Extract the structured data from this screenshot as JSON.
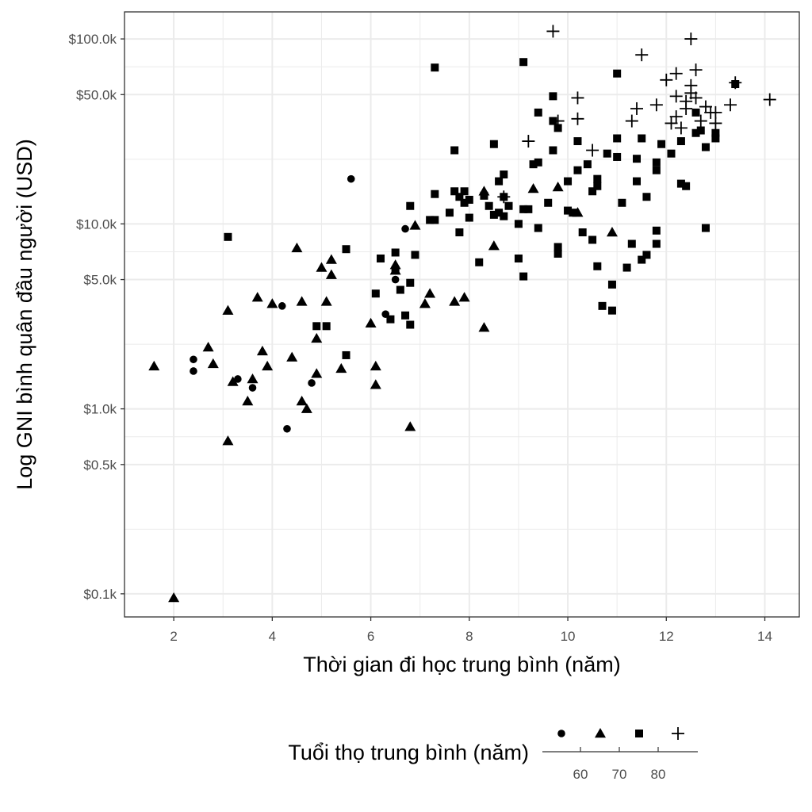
{
  "chart_data": {
    "type": "scatter",
    "x_label": "Thời gian đi học trung bình (năm)",
    "y_label": "Log GNI bình quân đầu người (USD)",
    "x_range": [
      1.0,
      14.7
    ],
    "y_range": [
      0.075,
      140
    ],
    "y_scale": "log10",
    "x_ticks": [
      2,
      4,
      6,
      8,
      10,
      12,
      14
    ],
    "x_tick_labels": [
      "2",
      "4",
      "6",
      "8",
      "10",
      "12",
      "14"
    ],
    "y_ticks": [
      0.1,
      0.5,
      1,
      5,
      10,
      50,
      100
    ],
    "y_tick_labels": [
      "$0.1k",
      "$0.5k",
      "$1.0k",
      "$5.0k",
      "$10.0k",
      "$50.0k",
      "$100.0k"
    ],
    "grid": true,
    "legend": {
      "title": "Tuổi thọ trung bình (năm)",
      "position": "bottom",
      "shapes": [
        "circle",
        "triangle",
        "square",
        "cross"
      ],
      "scale_ticks": [
        "60",
        "70",
        "80"
      ]
    },
    "colors": {
      "grid": "#ebebeb",
      "panel_border": "#333333",
      "points": "#000000",
      "text": "#4d4d4d"
    },
    "series": [
      {
        "shape": "circle",
        "points": [
          [
            2.4,
            1.85
          ],
          [
            2.4,
            1.6
          ],
          [
            3.3,
            1.45
          ],
          [
            3.6,
            1.3
          ],
          [
            4.2,
            3.6
          ],
          [
            4.3,
            0.78
          ],
          [
            4.8,
            1.38
          ],
          [
            5.6,
            17.5
          ],
          [
            6.3,
            3.25
          ],
          [
            6.5,
            5.0
          ],
          [
            6.7,
            9.4
          ]
        ]
      },
      {
        "shape": "triangle",
        "points": [
          [
            1.6,
            1.7
          ],
          [
            2.0,
            0.095
          ],
          [
            2.7,
            2.15
          ],
          [
            2.8,
            1.75
          ],
          [
            3.1,
            0.67
          ],
          [
            3.1,
            3.4
          ],
          [
            3.2,
            1.4
          ],
          [
            3.5,
            1.1
          ],
          [
            3.6,
            1.45
          ],
          [
            3.7,
            4.0
          ],
          [
            3.8,
            2.05
          ],
          [
            3.9,
            1.7
          ],
          [
            4.0,
            3.7
          ],
          [
            4.4,
            1.9
          ],
          [
            4.5,
            7.4
          ],
          [
            4.6,
            3.8
          ],
          [
            4.6,
            1.1
          ],
          [
            4.7,
            1.0
          ],
          [
            4.9,
            2.4
          ],
          [
            4.9,
            1.55
          ],
          [
            5.0,
            5.8
          ],
          [
            5.1,
            3.8
          ],
          [
            5.2,
            6.4
          ],
          [
            5.2,
            5.3
          ],
          [
            5.4,
            1.65
          ],
          [
            6.0,
            2.9
          ],
          [
            6.1,
            1.7
          ],
          [
            6.1,
            1.35
          ],
          [
            6.5,
            6.0
          ],
          [
            6.5,
            5.6
          ],
          [
            6.8,
            0.8
          ],
          [
            6.9,
            9.8
          ],
          [
            7.1,
            3.7
          ],
          [
            7.2,
            4.2
          ],
          [
            7.7,
            3.8
          ],
          [
            7.9,
            4.0
          ],
          [
            8.3,
            2.75
          ],
          [
            8.3,
            15.0
          ],
          [
            8.5,
            7.6
          ],
          [
            9.3,
            15.5
          ],
          [
            9.8,
            15.8
          ],
          [
            10.2,
            11.5
          ],
          [
            10.9,
            9.0
          ]
        ]
      },
      {
        "shape": "square",
        "points": [
          [
            3.1,
            8.5
          ],
          [
            4.9,
            2.8
          ],
          [
            5.1,
            2.8
          ],
          [
            5.5,
            7.3
          ],
          [
            5.5,
            1.95
          ],
          [
            6.1,
            4.2
          ],
          [
            6.2,
            6.5
          ],
          [
            6.4,
            3.05
          ],
          [
            6.5,
            7.0
          ],
          [
            6.5,
            5.6
          ],
          [
            6.6,
            4.4
          ],
          [
            6.7,
            3.2
          ],
          [
            6.8,
            12.5
          ],
          [
            6.8,
            4.8
          ],
          [
            6.8,
            2.85
          ],
          [
            6.9,
            6.8
          ],
          [
            7.2,
            10.5
          ],
          [
            7.3,
            14.5
          ],
          [
            7.3,
            10.5
          ],
          [
            7.3,
            70
          ],
          [
            7.6,
            11.5
          ],
          [
            7.7,
            15.0
          ],
          [
            7.7,
            25
          ],
          [
            7.8,
            9.0
          ],
          [
            7.8,
            14.0
          ],
          [
            7.9,
            15.0
          ],
          [
            7.9,
            13.0
          ],
          [
            8.0,
            13.5
          ],
          [
            8.0,
            10.8
          ],
          [
            8.2,
            6.2
          ],
          [
            8.3,
            14.2
          ],
          [
            8.4,
            12.5
          ],
          [
            8.5,
            11.2
          ],
          [
            8.5,
            27
          ],
          [
            8.6,
            11.5
          ],
          [
            8.6,
            17.0
          ],
          [
            8.7,
            14.0
          ],
          [
            8.7,
            11.0
          ],
          [
            8.7,
            18.5
          ],
          [
            8.8,
            12.5
          ],
          [
            9.0,
            10.0
          ],
          [
            9.0,
            6.5
          ],
          [
            9.1,
            5.2
          ],
          [
            9.1,
            12.0
          ],
          [
            9.1,
            75
          ],
          [
            9.2,
            12.0
          ],
          [
            9.3,
            21
          ],
          [
            9.4,
            9.5
          ],
          [
            9.4,
            21.5
          ],
          [
            9.4,
            40
          ],
          [
            9.6,
            13.0
          ],
          [
            9.7,
            25
          ],
          [
            9.7,
            36
          ],
          [
            9.7,
            49
          ],
          [
            9.8,
            7.5
          ],
          [
            9.8,
            6.9
          ],
          [
            9.8,
            33
          ],
          [
            10.0,
            17.0
          ],
          [
            10.0,
            11.8
          ],
          [
            10.1,
            11.5
          ],
          [
            10.2,
            19.5
          ],
          [
            10.2,
            28
          ],
          [
            10.3,
            9.0
          ],
          [
            10.4,
            21
          ],
          [
            10.5,
            8.2
          ],
          [
            10.5,
            15.0
          ],
          [
            10.6,
            5.9
          ],
          [
            10.6,
            16.0
          ],
          [
            10.6,
            17.5
          ],
          [
            10.7,
            3.6
          ],
          [
            10.8,
            24
          ],
          [
            10.9,
            3.4
          ],
          [
            10.9,
            4.7
          ],
          [
            11.0,
            29
          ],
          [
            11.0,
            23
          ],
          [
            11.0,
            65
          ],
          [
            11.1,
            13.0
          ],
          [
            11.2,
            5.8
          ],
          [
            11.3,
            7.8
          ],
          [
            11.4,
            17.0
          ],
          [
            11.4,
            22.5
          ],
          [
            11.5,
            29
          ],
          [
            11.5,
            6.4
          ],
          [
            11.6,
            14.0
          ],
          [
            11.6,
            6.8
          ],
          [
            11.8,
            7.8
          ],
          [
            11.8,
            9.2
          ],
          [
            11.8,
            19.5
          ],
          [
            11.8,
            21.5
          ],
          [
            11.9,
            27
          ],
          [
            12.1,
            24
          ],
          [
            12.3,
            28
          ],
          [
            12.3,
            16.5
          ],
          [
            12.4,
            16.0
          ],
          [
            12.6,
            40
          ],
          [
            12.6,
            31
          ],
          [
            12.7,
            32
          ],
          [
            12.8,
            26
          ],
          [
            12.8,
            9.5
          ],
          [
            13.0,
            29
          ],
          [
            13.0,
            31
          ],
          [
            13.4,
            57
          ]
        ]
      },
      {
        "shape": "cross",
        "points": [
          [
            8.7,
            14.0
          ],
          [
            9.2,
            28
          ],
          [
            9.7,
            110
          ],
          [
            9.8,
            36
          ],
          [
            10.2,
            37
          ],
          [
            10.2,
            48
          ],
          [
            10.5,
            25
          ],
          [
            11.3,
            36
          ],
          [
            11.4,
            42
          ],
          [
            11.5,
            82
          ],
          [
            11.8,
            44
          ],
          [
            12.0,
            60
          ],
          [
            12.1,
            35
          ],
          [
            12.2,
            65
          ],
          [
            12.2,
            49
          ],
          [
            12.2,
            38
          ],
          [
            12.3,
            33
          ],
          [
            12.4,
            42
          ],
          [
            12.4,
            46
          ],
          [
            12.5,
            100
          ],
          [
            12.5,
            56
          ],
          [
            12.5,
            51
          ],
          [
            12.6,
            68
          ],
          [
            12.6,
            48
          ],
          [
            12.7,
            36
          ],
          [
            12.8,
            43
          ],
          [
            12.9,
            40
          ],
          [
            13.0,
            35
          ],
          [
            13.0,
            40
          ],
          [
            13.3,
            44
          ],
          [
            13.4,
            58
          ],
          [
            14.1,
            47
          ]
        ]
      }
    ]
  }
}
